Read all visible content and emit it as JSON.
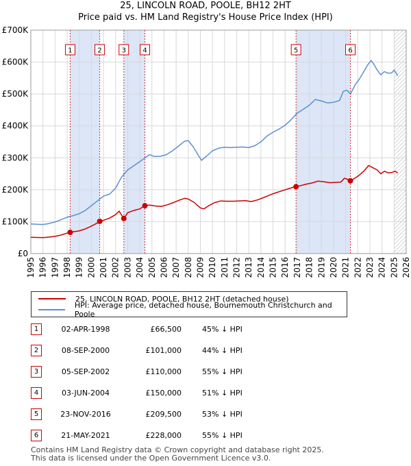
{
  "title": {
    "line1": "25, LINCOLN ROAD, POOLE, BH12 2HT",
    "line2": "Price paid vs. HM Land Registry's House Price Index (HPI)"
  },
  "colors": {
    "property": "#cc0000",
    "hpi": "#5b8fd0",
    "shade": "#dce6f7",
    "marker_border": "#cc0000",
    "hatch": "#aaaaaa"
  },
  "legend": {
    "property_label": "25, LINCOLN ROAD, POOLE, BH12 2HT (detached house)",
    "hpi_label": "HPI: Average price, detached house, Bournemouth Christchurch and Poole"
  },
  "sales": [
    {
      "num": "1",
      "date": "02-APR-1998",
      "price": "£66,500",
      "hpi": "45% ↓ HPI"
    },
    {
      "num": "2",
      "date": "08-SEP-2000",
      "price": "£101,000",
      "hpi": "44% ↓ HPI"
    },
    {
      "num": "3",
      "date": "05-SEP-2002",
      "price": "£110,000",
      "hpi": "55% ↓ HPI"
    },
    {
      "num": "4",
      "date": "03-JUN-2004",
      "price": "£150,000",
      "hpi": "51% ↓ HPI"
    },
    {
      "num": "5",
      "date": "23-NOV-2016",
      "price": "£209,500",
      "hpi": "53% ↓ HPI"
    },
    {
      "num": "6",
      "date": "21-MAY-2021",
      "price": "£228,000",
      "hpi": "55% ↓ HPI"
    }
  ],
  "footer": {
    "line1": "Contains HM Land Registry data © Crown copyright and database right 2025.",
    "line2": "This data is licensed under the Open Government Licence v3.0."
  },
  "chart_data": {
    "type": "line",
    "x_range": [
      1995,
      2026
    ],
    "ylim": [
      0,
      700000
    ],
    "y_ticks": [
      0,
      100000,
      200000,
      300000,
      400000,
      500000,
      600000,
      700000
    ],
    "y_tick_labels": [
      "£0",
      "£100K",
      "£200K",
      "£300K",
      "£400K",
      "£500K",
      "£600K",
      "£700K"
    ],
    "x_ticks": [
      1995,
      1996,
      1997,
      1998,
      1999,
      2000,
      2001,
      2002,
      2003,
      2004,
      2005,
      2006,
      2007,
      2008,
      2009,
      2010,
      2011,
      2012,
      2013,
      2014,
      2015,
      2016,
      2017,
      2018,
      2019,
      2020,
      2021,
      2022,
      2023,
      2024,
      2025,
      2026
    ],
    "grid": true,
    "shaded_periods": [
      [
        1998.25,
        2000.69
      ],
      [
        2002.68,
        2004.42
      ],
      [
        2016.9,
        2021.39
      ]
    ],
    "hatched_from": 2025.0,
    "sale_markers": [
      {
        "label": "1",
        "x": 1998.25,
        "y": 66500
      },
      {
        "label": "2",
        "x": 2000.69,
        "y": 101000
      },
      {
        "label": "3",
        "x": 2002.68,
        "y": 110000
      },
      {
        "label": "4",
        "x": 2004.42,
        "y": 150000
      },
      {
        "label": "5",
        "x": 2016.9,
        "y": 209500
      },
      {
        "label": "6",
        "x": 2021.39,
        "y": 228000
      }
    ],
    "series": [
      {
        "name": "25, LINCOLN ROAD, POOLE, BH12 2HT (detached house)",
        "points": [
          [
            1995.0,
            51000
          ],
          [
            1995.5,
            50500
          ],
          [
            1996.0,
            50000
          ],
          [
            1996.5,
            51500
          ],
          [
            1997.0,
            54000
          ],
          [
            1997.5,
            58000
          ],
          [
            1998.0,
            64000
          ],
          [
            1998.25,
            66500
          ],
          [
            1998.5,
            68000
          ],
          [
            1999.0,
            71000
          ],
          [
            1999.5,
            77000
          ],
          [
            2000.0,
            86000
          ],
          [
            2000.5,
            96000
          ],
          [
            2000.69,
            101000
          ],
          [
            2001.0,
            104000
          ],
          [
            2001.5,
            111000
          ],
          [
            2002.0,
            122000
          ],
          [
            2002.3,
            133000
          ],
          [
            2002.5,
            120000
          ],
          [
            2002.68,
            110000
          ],
          [
            2003.0,
            128000
          ],
          [
            2003.5,
            135000
          ],
          [
            2004.0,
            140000
          ],
          [
            2004.42,
            150000
          ],
          [
            2004.8,
            152000
          ],
          [
            2005.3,
            149000
          ],
          [
            2005.8,
            148000
          ],
          [
            2006.3,
            153000
          ],
          [
            2006.8,
            160000
          ],
          [
            2007.3,
            168000
          ],
          [
            2007.7,
            173000
          ],
          [
            2008.0,
            171000
          ],
          [
            2008.5,
            160000
          ],
          [
            2009.0,
            143000
          ],
          [
            2009.3,
            140000
          ],
          [
            2009.7,
            150000
          ],
          [
            2010.2,
            160000
          ],
          [
            2010.7,
            165000
          ],
          [
            2011.2,
            164000
          ],
          [
            2011.7,
            164000
          ],
          [
            2012.2,
            165000
          ],
          [
            2012.7,
            166000
          ],
          [
            2013.2,
            163000
          ],
          [
            2013.7,
            168000
          ],
          [
            2014.2,
            175000
          ],
          [
            2014.7,
            183000
          ],
          [
            2015.2,
            190000
          ],
          [
            2015.7,
            196000
          ],
          [
            2016.2,
            202000
          ],
          [
            2016.6,
            207000
          ],
          [
            2016.9,
            209500
          ],
          [
            2017.3,
            213000
          ],
          [
            2017.7,
            217000
          ],
          [
            2018.2,
            221000
          ],
          [
            2018.7,
            227000
          ],
          [
            2019.2,
            225000
          ],
          [
            2019.7,
            222000
          ],
          [
            2020.2,
            223000
          ],
          [
            2020.6,
            224000
          ],
          [
            2020.9,
            236000
          ],
          [
            2021.2,
            232000
          ],
          [
            2021.39,
            228000
          ],
          [
            2021.7,
            235000
          ],
          [
            2022.0,
            242000
          ],
          [
            2022.5,
            258000
          ],
          [
            2022.9,
            276000
          ],
          [
            2023.2,
            270000
          ],
          [
            2023.6,
            262000
          ],
          [
            2023.9,
            250000
          ],
          [
            2024.2,
            258000
          ],
          [
            2024.5,
            253000
          ],
          [
            2024.8,
            254000
          ],
          [
            2025.1,
            258000
          ],
          [
            2025.3,
            252000
          ]
        ]
      },
      {
        "name": "HPI: Average price, detached house, Bournemouth Christchurch and Poole",
        "points": [
          [
            1995.0,
            93000
          ],
          [
            1995.5,
            92000
          ],
          [
            1996.0,
            91000
          ],
          [
            1996.5,
            94000
          ],
          [
            1997.0,
            99000
          ],
          [
            1997.5,
            106000
          ],
          [
            1998.0,
            114000
          ],
          [
            1998.5,
            119000
          ],
          [
            1999.0,
            125000
          ],
          [
            1999.5,
            135000
          ],
          [
            2000.0,
            150000
          ],
          [
            2000.5,
            165000
          ],
          [
            2001.0,
            180000
          ],
          [
            2001.5,
            186000
          ],
          [
            2002.0,
            205000
          ],
          [
            2002.5,
            240000
          ],
          [
            2003.0,
            262000
          ],
          [
            2003.5,
            275000
          ],
          [
            2004.0,
            288000
          ],
          [
            2004.5,
            302000
          ],
          [
            2004.8,
            310000
          ],
          [
            2005.2,
            304000
          ],
          [
            2005.7,
            305000
          ],
          [
            2006.2,
            310000
          ],
          [
            2006.7,
            322000
          ],
          [
            2007.2,
            337000
          ],
          [
            2007.7,
            352000
          ],
          [
            2008.0,
            354000
          ],
          [
            2008.4,
            335000
          ],
          [
            2008.8,
            310000
          ],
          [
            2009.1,
            292000
          ],
          [
            2009.5,
            305000
          ],
          [
            2010.0,
            322000
          ],
          [
            2010.5,
            330000
          ],
          [
            2011.0,
            333000
          ],
          [
            2011.5,
            332000
          ],
          [
            2012.0,
            333000
          ],
          [
            2012.5,
            334000
          ],
          [
            2013.0,
            332000
          ],
          [
            2013.5,
            338000
          ],
          [
            2014.0,
            350000
          ],
          [
            2014.5,
            368000
          ],
          [
            2015.0,
            380000
          ],
          [
            2015.5,
            390000
          ],
          [
            2016.0,
            402000
          ],
          [
            2016.5,
            420000
          ],
          [
            2017.0,
            440000
          ],
          [
            2017.5,
            452000
          ],
          [
            2018.0,
            465000
          ],
          [
            2018.5,
            483000
          ],
          [
            2019.0,
            478000
          ],
          [
            2019.5,
            472000
          ],
          [
            2020.0,
            474000
          ],
          [
            2020.5,
            480000
          ],
          [
            2020.8,
            508000
          ],
          [
            2021.1,
            512000
          ],
          [
            2021.4,
            500000
          ],
          [
            2021.8,
            530000
          ],
          [
            2022.1,
            545000
          ],
          [
            2022.5,
            570000
          ],
          [
            2022.8,
            590000
          ],
          [
            2023.1,
            605000
          ],
          [
            2023.3,
            595000
          ],
          [
            2023.6,
            575000
          ],
          [
            2023.9,
            560000
          ],
          [
            2024.2,
            570000
          ],
          [
            2024.5,
            565000
          ],
          [
            2024.8,
            566000
          ],
          [
            2025.0,
            575000
          ],
          [
            2025.3,
            558000
          ]
        ]
      }
    ]
  }
}
